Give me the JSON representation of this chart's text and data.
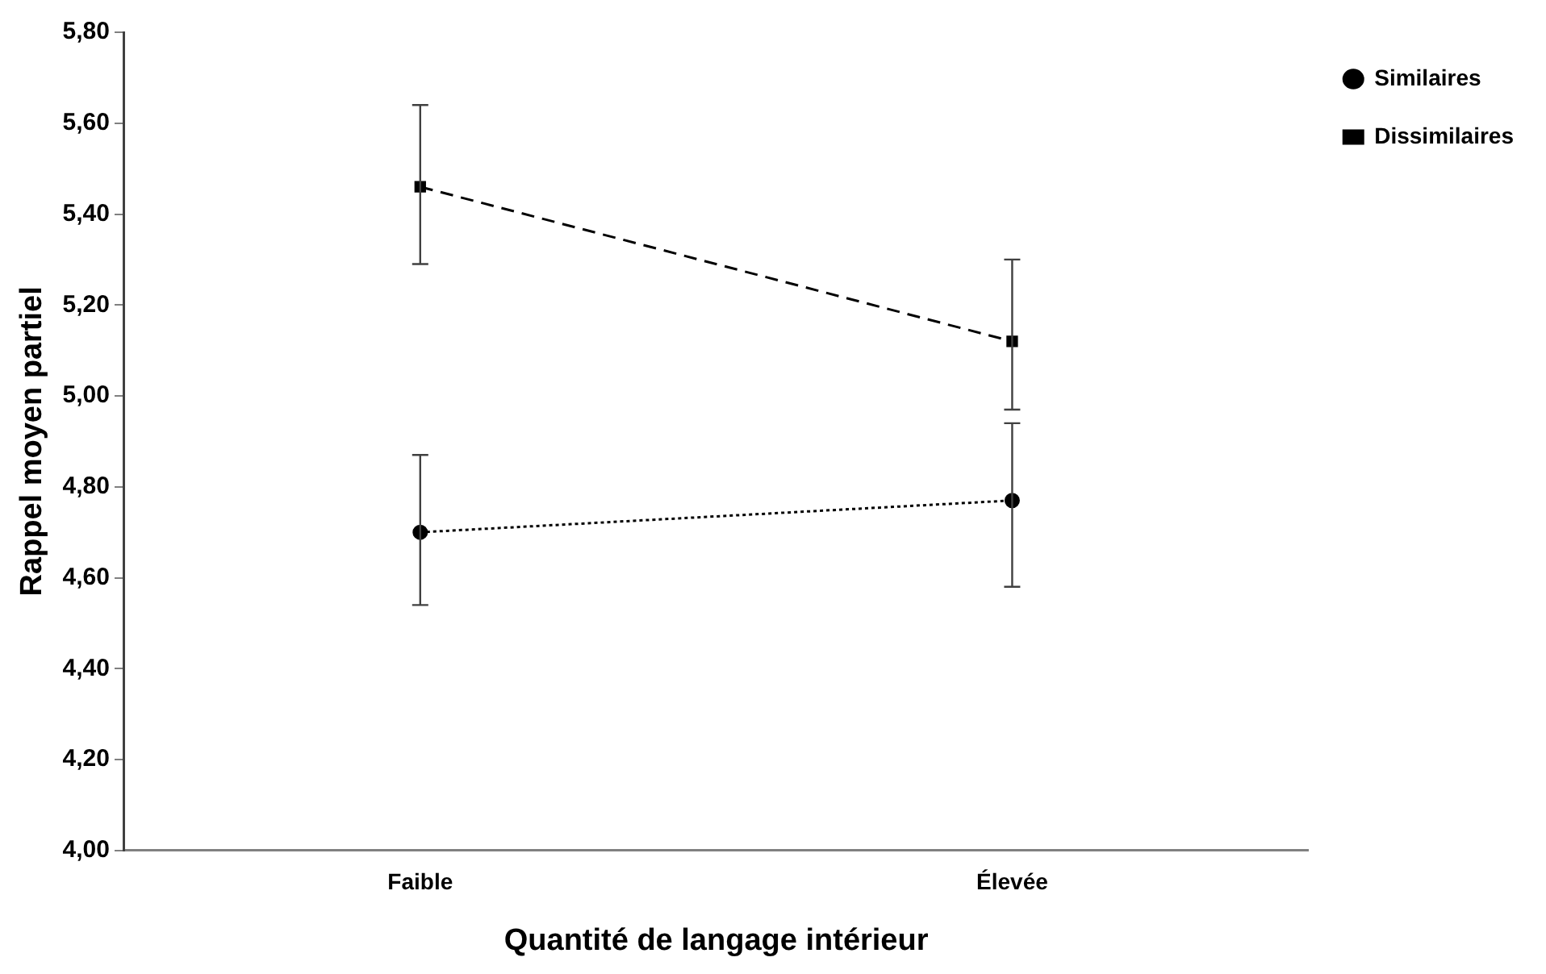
{
  "chart_data": {
    "type": "line",
    "xlabel": "Quantité de langage intérieur",
    "ylabel": "Rappel moyen partiel",
    "categories": [
      "Faible",
      "Élevée"
    ],
    "series": [
      {
        "name": "Similaires",
        "color": "#000000",
        "values": [
          4.7,
          4.77
        ],
        "errors": [
          [
            4.54,
            4.87
          ],
          [
            4.58,
            4.94
          ]
        ],
        "marker": "circle",
        "line_style": "dotted"
      },
      {
        "name": "Dissimilaires",
        "color": "#000000",
        "values": [
          5.46,
          5.12
        ],
        "errors": [
          [
            5.29,
            5.64
          ],
          [
            4.97,
            5.3
          ]
        ],
        "marker": "square",
        "line_style": "dashed"
      }
    ],
    "ylim": [
      4.0,
      5.8
    ],
    "yticks": [
      {
        "value": 4.0,
        "label": "4,00"
      },
      {
        "value": 4.2,
        "label": "4,20"
      },
      {
        "value": 4.4,
        "label": "4,40"
      },
      {
        "value": 4.6,
        "label": "4,60"
      },
      {
        "value": 4.8,
        "label": "4,80"
      },
      {
        "value": 5.0,
        "label": "5,00"
      },
      {
        "value": 5.2,
        "label": "5,20"
      },
      {
        "value": 5.4,
        "label": "5,40"
      },
      {
        "value": 5.6,
        "label": "5,60"
      },
      {
        "value": 5.8,
        "label": "5,80"
      }
    ],
    "grid": false,
    "legend": "top right"
  }
}
